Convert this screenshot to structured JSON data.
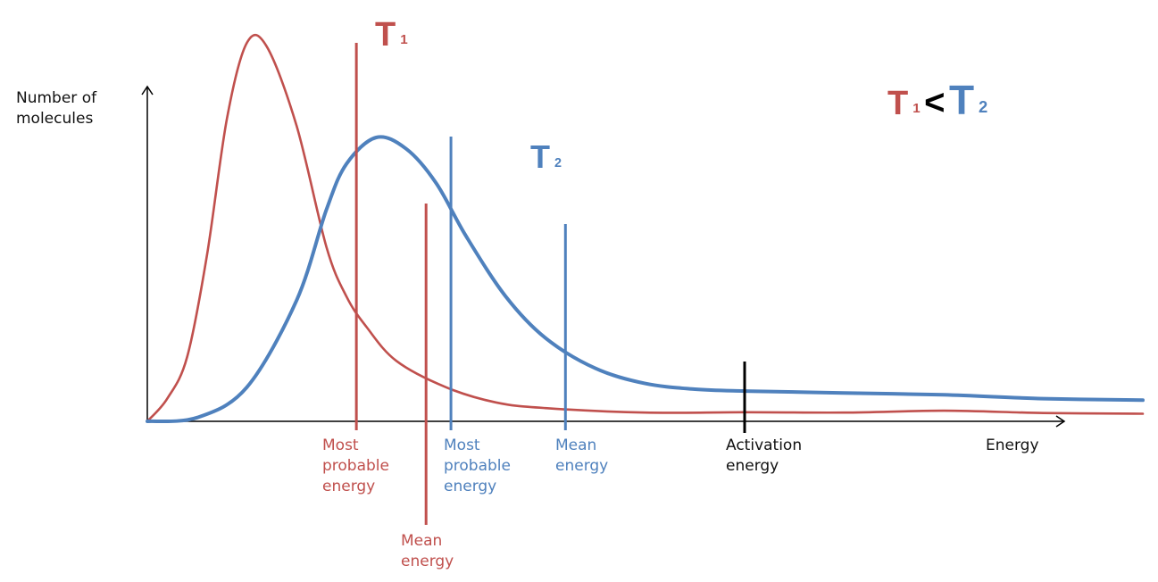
{
  "chart_data": {
    "type": "line",
    "ylabel": "Number of\nmolecules",
    "xlabel": "Energy",
    "grid": false,
    "legend": "none",
    "colors": {
      "T1": "#c0504d",
      "T2": "#4f81bd",
      "axis": "#000000",
      "activation": "#000000"
    },
    "series": [
      {
        "name": "T1",
        "x": [
          0,
          0.2,
          0.4,
          0.6,
          0.8,
          1.0,
          1.2,
          1.5,
          1.8,
          2.0,
          2.2,
          2.5,
          3.0,
          3.5,
          4.0,
          5.0,
          6.0,
          7.0,
          8.0,
          9.0,
          10.0
        ],
        "y": [
          0,
          6,
          17,
          44,
          80,
          100,
          99,
          78,
          46,
          33,
          25,
          16,
          9,
          5,
          3.5,
          2.3,
          2.4,
          2.3,
          2.8,
          2.2,
          2.0
        ]
      },
      {
        "name": "T2",
        "x": [
          0,
          0.5,
          1.0,
          1.5,
          1.8,
          2.0,
          2.3,
          2.6,
          2.9,
          3.2,
          3.6,
          4.0,
          4.5,
          5.0,
          5.5,
          6.0,
          7.0,
          8.0,
          9.0,
          10.0
        ],
        "y": [
          0,
          1,
          9,
          32,
          56,
          68,
          75,
          72,
          63,
          49,
          33,
          22,
          14,
          10,
          8.5,
          8,
          7.5,
          7,
          6,
          5.6
        ]
      }
    ],
    "markers": [
      {
        "name": "T1 most probable energy",
        "series": "T1",
        "x": 2.1,
        "label": "Most\nprobable\nenergy"
      },
      {
        "name": "T1 mean energy",
        "series": "T1",
        "x": 2.8,
        "label": "Mean\nenergy"
      },
      {
        "name": "T2 most probable energy",
        "series": "T2",
        "x": 3.05,
        "label": "Most\nprobable\nenergy"
      },
      {
        "name": "T2 mean energy",
        "series": "T2",
        "x": 4.2,
        "label": "Mean\nenergy"
      },
      {
        "name": "activation energy",
        "series": null,
        "x": 6.0,
        "label": "Activation\nenergy"
      }
    ],
    "series_labels": {
      "T1": "T",
      "T1_sub": "1",
      "T2": "T",
      "T2_sub": "2"
    },
    "relation": {
      "left": "T",
      "left_sub": "1",
      "op": "<",
      "right": "T",
      "right_sub": "2"
    }
  }
}
